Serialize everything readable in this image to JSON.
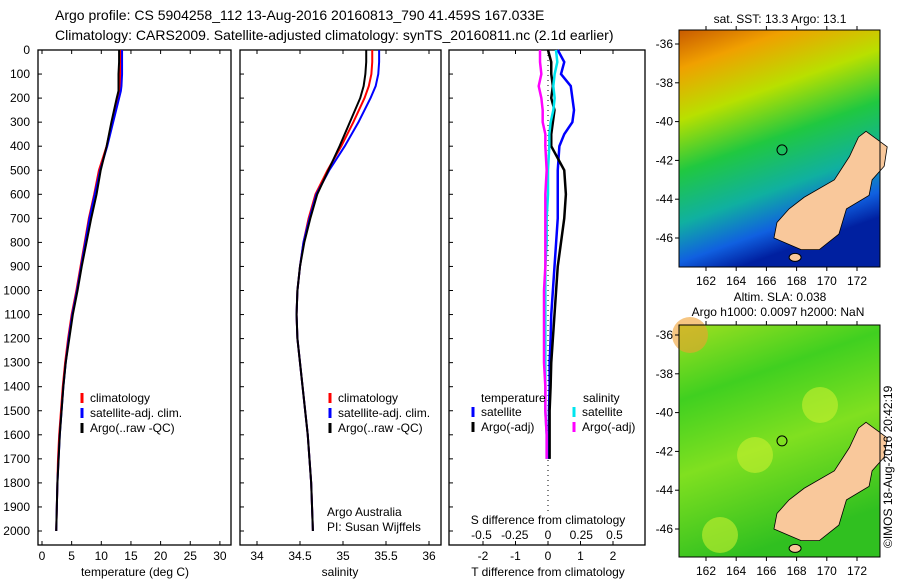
{
  "title_line1": "Argo profile: CS 5904258_112 13-Aug-2016 20160813_790 41.459S 167.033E",
  "title_line2": "Climatology: CARS2009. Satellite-adjusted climatology: synTS_20160811.nc (2.1d earlier)",
  "colors": {
    "climatology": "#ff0000",
    "satellite": "#0000ff",
    "argo": "#000000",
    "s_satellite": "#00e5ee",
    "s_argo": "#ff00ff",
    "land": "#f9c89b"
  },
  "chart_data": [
    {
      "type": "line",
      "xlabel": "temperature (deg C)",
      "ylabel": "",
      "xlim": [
        -0.5,
        31
      ],
      "ylim": [
        2060,
        0
      ],
      "xticks": [
        0,
        5,
        10,
        15,
        20,
        25,
        30
      ],
      "yticks": [
        0,
        100,
        200,
        300,
        400,
        500,
        600,
        700,
        800,
        900,
        1000,
        1100,
        1200,
        1300,
        1400,
        1500,
        1600,
        1700,
        1800,
        1900,
        2000
      ],
      "depth": [
        0,
        50,
        100,
        150,
        170,
        200,
        300,
        400,
        500,
        600,
        700,
        800,
        900,
        1000,
        1100,
        1200,
        1300,
        1400,
        1500,
        1600,
        1700,
        1800,
        1900,
        2000
      ],
      "series": [
        {
          "name": "climatology",
          "values": [
            13.3,
            13.3,
            13.2,
            13.2,
            13.1,
            12.8,
            11.8,
            10.9,
            9.6,
            8.8,
            7.9,
            7.2,
            6.5,
            5.8,
            5.0,
            4.4,
            3.9,
            3.5,
            3.2,
            2.9,
            2.7,
            2.6,
            2.5,
            2.4
          ]
        },
        {
          "name": "satellite-adj. clim.",
          "values": [
            13.5,
            13.5,
            13.5,
            13.4,
            13.3,
            13.0,
            12.0,
            11.0,
            9.8,
            8.9,
            8.0,
            7.3,
            6.6,
            5.9,
            5.1,
            4.5,
            4.0,
            3.6,
            3.3,
            3.0,
            2.8,
            2.6,
            2.5,
            2.4
          ]
        },
        {
          "name": "Argo(..raw -QC)",
          "values": [
            13.0,
            13.0,
            12.9,
            12.9,
            12.9,
            12.6,
            11.7,
            10.9,
            9.9,
            9.2,
            8.3,
            7.5,
            6.7,
            6.0,
            5.2,
            4.6,
            4.0,
            3.6,
            3.3,
            3.0,
            2.8,
            2.6,
            2.5,
            2.4
          ]
        }
      ],
      "legend": [
        "climatology",
        "satellite-adj. clim.",
        "Argo(..raw -QC)"
      ]
    },
    {
      "type": "line",
      "xlabel": "salinity",
      "xlim": [
        33.8,
        36.1
      ],
      "ylim": [
        2060,
        0
      ],
      "xticks": [
        "34",
        "34.5",
        "35",
        "35.5",
        "36"
      ],
      "depth": [
        0,
        50,
        100,
        150,
        200,
        300,
        400,
        500,
        600,
        700,
        800,
        900,
        1000,
        1100,
        1200,
        1300,
        1400,
        1500,
        1600,
        1700,
        1800,
        1900,
        2000
      ],
      "series": [
        {
          "name": "climatology",
          "values": [
            35.34,
            35.34,
            35.33,
            35.3,
            35.25,
            35.12,
            34.98,
            34.82,
            34.68,
            34.6,
            34.54,
            34.5,
            34.47,
            34.46,
            34.47,
            34.5,
            34.53,
            34.56,
            34.59,
            34.61,
            34.63,
            34.64,
            34.65
          ]
        },
        {
          "name": "satellite-adj. clim.",
          "values": [
            35.42,
            35.42,
            35.41,
            35.38,
            35.32,
            35.18,
            35.02,
            34.84,
            34.69,
            34.61,
            34.54,
            34.5,
            34.47,
            34.46,
            34.47,
            34.5,
            34.53,
            34.56,
            34.59,
            34.61,
            34.63,
            34.64,
            34.65
          ]
        },
        {
          "name": "Argo(..raw -QC)",
          "values": [
            35.27,
            35.27,
            35.26,
            35.24,
            35.2,
            35.08,
            34.96,
            34.83,
            34.7,
            34.62,
            34.55,
            34.5,
            34.47,
            34.46,
            34.47,
            34.5,
            34.53,
            34.56,
            34.59,
            34.61,
            34.63,
            34.64,
            34.65
          ]
        }
      ],
      "annotation": [
        "Argo Australia",
        "PI: Susan Wijffels"
      ]
    },
    {
      "type": "line",
      "xlabel": "T difference from climatology",
      "x2label": "S difference from climatology",
      "xlim": [
        -2.6,
        2.9
      ],
      "ylim": [
        2060,
        0
      ],
      "xticks": [
        "-2",
        "-1",
        "0",
        "1",
        "2"
      ],
      "x2ticks": [
        "-0.5",
        "-0.25",
        "0",
        "0.25",
        "0.5"
      ],
      "depth": [
        0,
        50,
        100,
        150,
        200,
        250,
        300,
        350,
        400,
        500,
        600,
        700,
        800,
        900,
        1000,
        1100,
        1200,
        1300,
        1400,
        1500,
        1600,
        1700
      ],
      "series": [
        {
          "name": "temperature satellite",
          "values": [
            0.3,
            0.5,
            0.4,
            0.7,
            0.75,
            0.8,
            0.75,
            0.5,
            0.35,
            0.3,
            0.3,
            0.3,
            0.25,
            0.2,
            0.15,
            0.1,
            0.08,
            0.05,
            0.05,
            0.03,
            0.03,
            0.02
          ]
        },
        {
          "name": "temperature Argo(-adj)",
          "values": [
            0.0,
            0.1,
            0.1,
            0.15,
            0.1,
            0.2,
            0.15,
            0.1,
            0.1,
            0.5,
            0.55,
            0.5,
            0.4,
            0.3,
            0.25,
            0.2,
            0.15,
            0.1,
            0.08,
            0.05,
            0.05,
            0.05
          ]
        },
        {
          "name": "salinity satellite",
          "values": [
            0.06,
            0.07,
            0.05,
            0.04,
            0.05,
            0.04,
            0.02,
            0.01,
            0.01,
            0.0,
            0.0,
            -0.01,
            -0.01,
            -0.02,
            -0.02,
            -0.02,
            -0.02,
            -0.02,
            -0.02,
            -0.02,
            -0.01,
            -0.01
          ]
        },
        {
          "name": "salinity Argo(-adj)",
          "values": [
            -0.06,
            -0.06,
            -0.05,
            -0.07,
            -0.05,
            -0.04,
            -0.04,
            -0.02,
            -0.02,
            -0.01,
            -0.02,
            -0.02,
            -0.02,
            -0.02,
            -0.03,
            -0.03,
            -0.03,
            -0.03,
            -0.02,
            -0.02,
            -0.01,
            -0.01
          ]
        }
      ],
      "legend": {
        "temperature_head": "temperature",
        "salinity_head": "salinity",
        "t_sat": "satellite",
        "t_argo": "Argo(-adj)",
        "s_sat": "satellite",
        "s_argo": "Argo(-adj)"
      }
    }
  ],
  "map_sst": {
    "title": "sat. SST: 13.3 Argo: 13.1",
    "xticks": [
      "162",
      "164",
      "166",
      "168",
      "170",
      "172"
    ],
    "yticks": [
      "-36",
      "-38",
      "-40",
      "-42",
      "-44",
      "-46"
    ]
  },
  "map_sla": {
    "title1": "Altim. SLA: 0.038",
    "title2": "Argo h1000: 0.0097 h2000: NaN",
    "xticks": [
      "162",
      "164",
      "166",
      "168",
      "170",
      "172"
    ],
    "yticks": [
      "-36",
      "-38",
      "-40",
      "-42",
      "-44",
      "-46"
    ]
  },
  "credit": "©IMOS 18-Aug-2016 20:42:19",
  "argo_position": {
    "lon": 167.033,
    "lat": -41.459
  }
}
